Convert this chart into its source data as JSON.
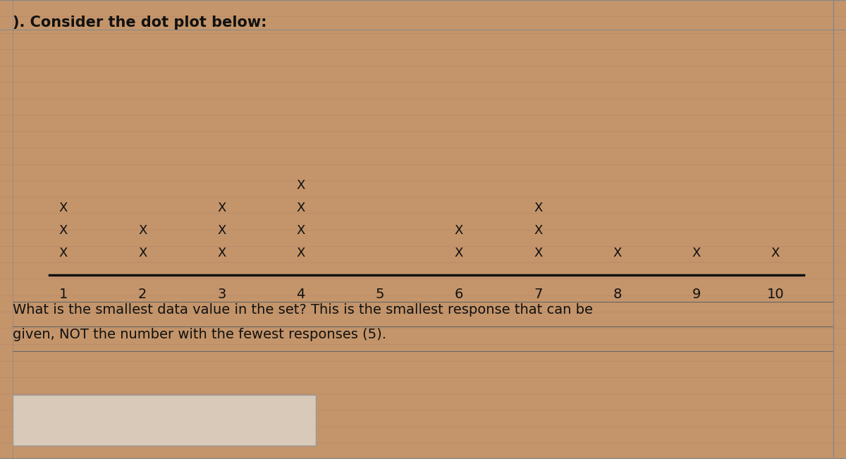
{
  "title": "). Consider the dot plot below:",
  "question_text_line1": "What is the smallest data value in the set? This is the smallest response that can be",
  "question_text_line2": "given, NOT the number with the fewest responses (5).",
  "dot_counts": {
    "1": 3,
    "2": 2,
    "3": 3,
    "4": 4,
    "5": 0,
    "6": 2,
    "7": 3,
    "8": 1,
    "9": 1,
    "10": 1
  },
  "bg_color": "#c4956a",
  "stripe_color": "#b8896a",
  "text_color": "#111111",
  "marker_fontsize": 13,
  "tick_fontsize": 14,
  "title_fontsize": 15,
  "question_fontsize": 14,
  "axis_line_color": "#111111",
  "answer_box_color": "#d9c9b8",
  "answer_box_border": "#999999"
}
